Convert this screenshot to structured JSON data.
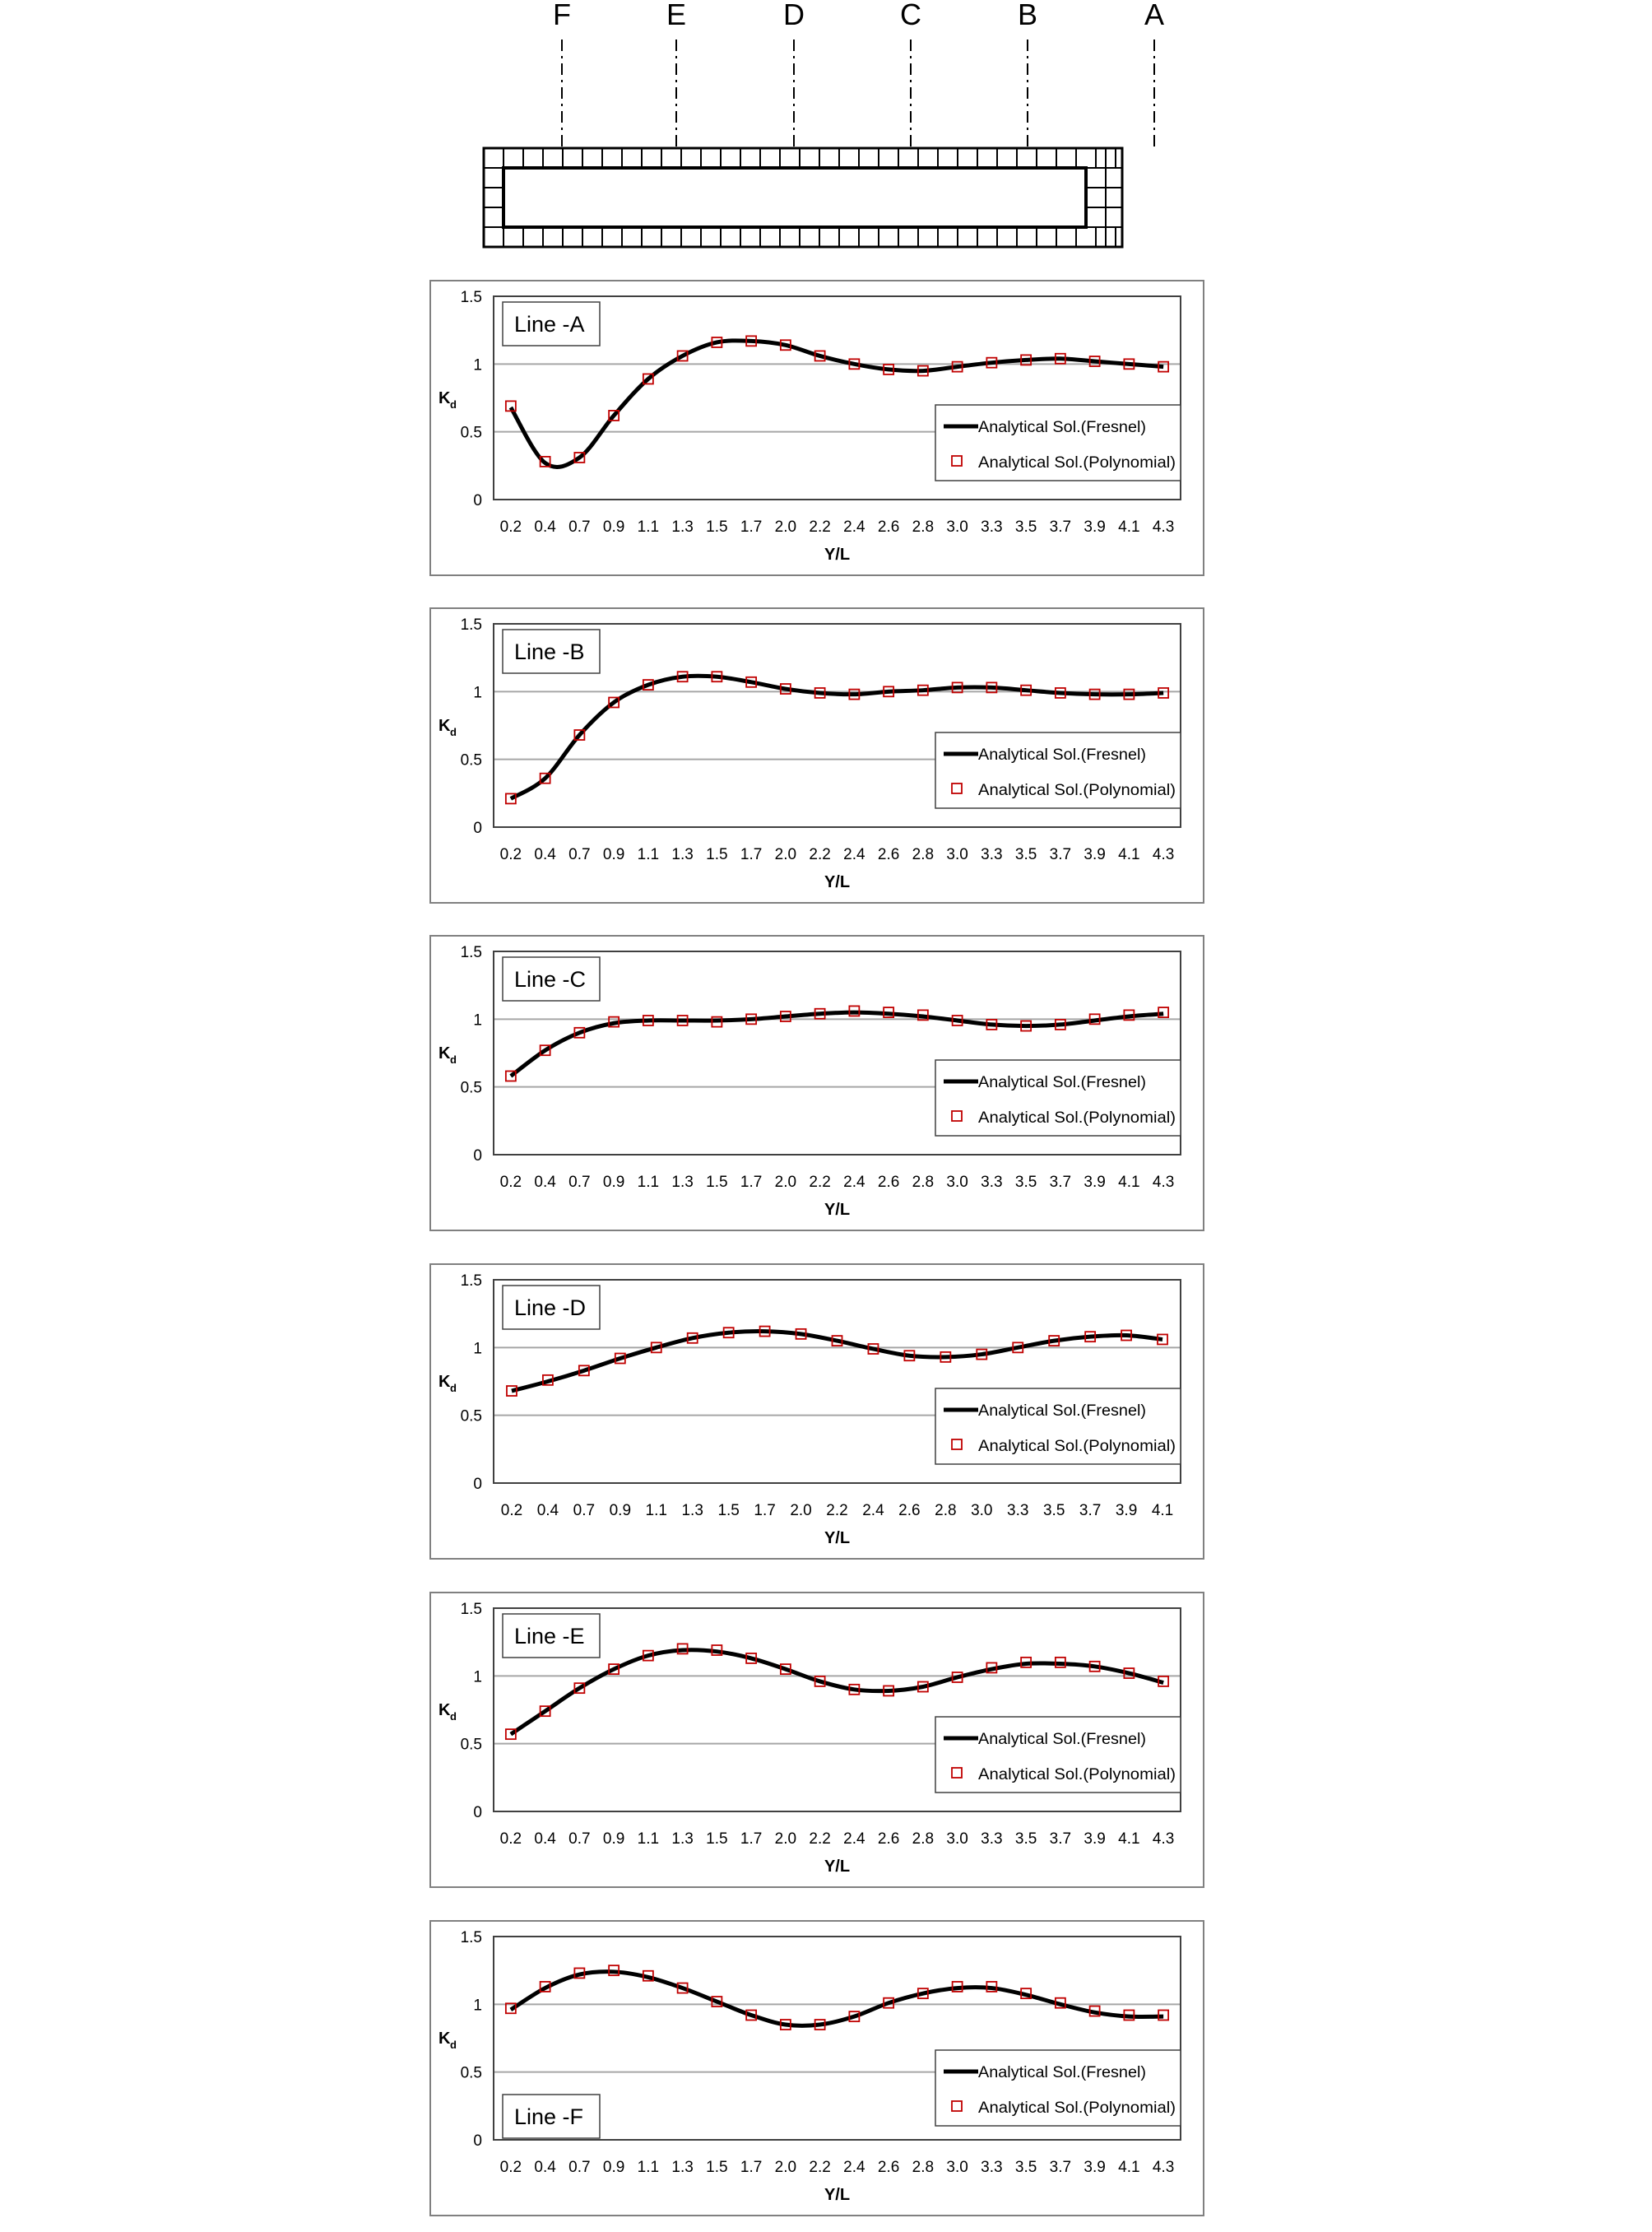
{
  "schematic": {
    "line_labels": [
      "F",
      "E",
      "D",
      "C",
      "B",
      "A"
    ]
  },
  "colors": {
    "fresnel_line": "#000000",
    "polynomial_marker": "#c00000",
    "gridline": "#a6a6a6",
    "frame": "#808080"
  },
  "chart_data": [
    {
      "type": "line",
      "title": "Line -A",
      "xlabel": "Y/L",
      "ylabel": "Kd",
      "ylim": [
        0,
        1.5
      ],
      "yticks": [
        "0",
        "0.5",
        "1",
        "1.5"
      ],
      "grid": "horizontal",
      "legend_position": "right",
      "categories": [
        "0.2",
        "0.4",
        "0.7",
        "0.9",
        "1.1",
        "1.3",
        "1.5",
        "1.7",
        "2.0",
        "2.2",
        "2.4",
        "2.6",
        "2.8",
        "3.0",
        "3.3",
        "3.5",
        "3.7",
        "3.9",
        "4.1",
        "4.3"
      ],
      "series": [
        {
          "name": "Analytical Sol.(Fresnel)",
          "style": "line",
          "values": [
            0.68,
            0.27,
            0.31,
            0.62,
            0.89,
            1.06,
            1.16,
            1.17,
            1.14,
            1.06,
            1.0,
            0.96,
            0.95,
            0.98,
            1.01,
            1.03,
            1.04,
            1.02,
            1.0,
            0.98
          ]
        },
        {
          "name": "Analytical Sol.(Polynomial)",
          "style": "marker",
          "values": [
            0.69,
            0.28,
            0.31,
            0.62,
            0.89,
            1.06,
            1.16,
            1.17,
            1.14,
            1.06,
            1.0,
            0.96,
            0.95,
            0.98,
            1.01,
            1.03,
            1.04,
            1.02,
            1.0,
            0.98
          ]
        }
      ]
    },
    {
      "type": "line",
      "title": "Line -B",
      "xlabel": "Y/L",
      "ylabel": "Kd",
      "ylim": [
        0,
        1.5
      ],
      "yticks": [
        "0",
        "0.5",
        "1",
        "1.5"
      ],
      "grid": "horizontal",
      "legend_position": "right",
      "categories": [
        "0.2",
        "0.4",
        "0.7",
        "0.9",
        "1.1",
        "1.3",
        "1.5",
        "1.7",
        "2.0",
        "2.2",
        "2.4",
        "2.6",
        "2.8",
        "3.0",
        "3.3",
        "3.5",
        "3.7",
        "3.9",
        "4.1",
        "4.3"
      ],
      "series": [
        {
          "name": "Analytical Sol.(Fresnel)",
          "style": "line",
          "values": [
            0.21,
            0.36,
            0.68,
            0.92,
            1.05,
            1.11,
            1.11,
            1.07,
            1.02,
            0.99,
            0.98,
            1.0,
            1.01,
            1.03,
            1.03,
            1.01,
            0.99,
            0.98,
            0.98,
            0.99
          ]
        },
        {
          "name": "Analytical Sol.(Polynomial)",
          "style": "marker",
          "values": [
            0.21,
            0.36,
            0.68,
            0.92,
            1.05,
            1.11,
            1.11,
            1.07,
            1.02,
            0.99,
            0.98,
            1.0,
            1.01,
            1.03,
            1.03,
            1.01,
            0.99,
            0.98,
            0.98,
            0.99
          ]
        }
      ]
    },
    {
      "type": "line",
      "title": "Line -C",
      "xlabel": "Y/L",
      "ylabel": "Kd",
      "ylim": [
        0,
        1.5
      ],
      "yticks": [
        "0",
        "0.5",
        "1",
        "1.5"
      ],
      "grid": "horizontal",
      "legend_position": "right",
      "categories": [
        "0.2",
        "0.4",
        "0.7",
        "0.9",
        "1.1",
        "1.3",
        "1.5",
        "1.7",
        "2.0",
        "2.2",
        "2.4",
        "2.6",
        "2.8",
        "3.0",
        "3.3",
        "3.5",
        "3.7",
        "3.9",
        "4.1",
        "4.3"
      ],
      "series": [
        {
          "name": "Analytical Sol.(Fresnel)",
          "style": "line",
          "values": [
            0.58,
            0.77,
            0.9,
            0.97,
            0.99,
            0.99,
            0.99,
            1.0,
            1.02,
            1.04,
            1.05,
            1.04,
            1.02,
            0.99,
            0.96,
            0.95,
            0.96,
            0.99,
            1.02,
            1.04
          ]
        },
        {
          "name": "Analytical Sol.(Polynomial)",
          "style": "marker",
          "values": [
            0.58,
            0.77,
            0.9,
            0.98,
            0.99,
            0.99,
            0.98,
            1.0,
            1.02,
            1.04,
            1.06,
            1.05,
            1.03,
            0.99,
            0.96,
            0.95,
            0.96,
            1.0,
            1.03,
            1.05
          ]
        }
      ]
    },
    {
      "type": "line",
      "title": "Line -D",
      "xlabel": "Y/L",
      "ylabel": "Kd",
      "ylim": [
        0,
        1.5
      ],
      "yticks": [
        "0",
        "0.5",
        "1",
        "1.5"
      ],
      "grid": "horizontal",
      "legend_position": "right",
      "categories": [
        "0.2",
        "0.4",
        "0.7",
        "0.9",
        "1.1",
        "1.3",
        "1.5",
        "1.7",
        "2.0",
        "2.2",
        "2.4",
        "2.6",
        "2.8",
        "3.0",
        "3.3",
        "3.5",
        "3.7",
        "3.9",
        "4.1"
      ],
      "series": [
        {
          "name": "Analytical Sol.(Fresnel)",
          "style": "line",
          "values": [
            0.68,
            0.75,
            0.83,
            0.92,
            1.0,
            1.07,
            1.11,
            1.12,
            1.1,
            1.05,
            0.99,
            0.94,
            0.93,
            0.95,
            1.0,
            1.05,
            1.08,
            1.09,
            1.06
          ]
        },
        {
          "name": "Analytical Sol.(Polynomial)",
          "style": "marker",
          "values": [
            0.68,
            0.76,
            0.83,
            0.92,
            1.0,
            1.07,
            1.11,
            1.12,
            1.1,
            1.05,
            0.99,
            0.94,
            0.93,
            0.95,
            1.0,
            1.05,
            1.08,
            1.09,
            1.06
          ]
        }
      ]
    },
    {
      "type": "line",
      "title": "Line -E",
      "xlabel": "Y/L",
      "ylabel": "Kd",
      "ylim": [
        0,
        1.5
      ],
      "yticks": [
        "0",
        "0.5",
        "1",
        "1.5"
      ],
      "grid": "horizontal",
      "legend_position": "right",
      "categories": [
        "0.2",
        "0.4",
        "0.7",
        "0.9",
        "1.1",
        "1.3",
        "1.5",
        "1.7",
        "2.0",
        "2.2",
        "2.4",
        "2.6",
        "2.8",
        "3.0",
        "3.3",
        "3.5",
        "3.7",
        "3.9",
        "4.1",
        "4.3"
      ],
      "series": [
        {
          "name": "Analytical Sol.(Fresnel)",
          "style": "line",
          "values": [
            0.57,
            0.74,
            0.91,
            1.05,
            1.15,
            1.19,
            1.18,
            1.13,
            1.05,
            0.96,
            0.9,
            0.89,
            0.92,
            0.99,
            1.05,
            1.09,
            1.09,
            1.07,
            1.02,
            0.95
          ]
        },
        {
          "name": "Analytical Sol.(Polynomial)",
          "style": "marker",
          "values": [
            0.57,
            0.74,
            0.91,
            1.05,
            1.15,
            1.2,
            1.19,
            1.13,
            1.05,
            0.96,
            0.9,
            0.89,
            0.92,
            0.99,
            1.06,
            1.1,
            1.1,
            1.07,
            1.02,
            0.96
          ]
        }
      ]
    },
    {
      "type": "line",
      "title": "Line -F",
      "xlabel": "Y/L",
      "ylabel": "Kd",
      "ylim": [
        0,
        1.5
      ],
      "yticks": [
        "0",
        "0.5",
        "1",
        "1.5"
      ],
      "grid": "horizontal",
      "legend_position": "bottom-right",
      "categories": [
        "0.2",
        "0.4",
        "0.7",
        "0.9",
        "1.1",
        "1.3",
        "1.5",
        "1.7",
        "2.0",
        "2.2",
        "2.4",
        "2.6",
        "2.8",
        "3.0",
        "3.3",
        "3.5",
        "3.7",
        "3.9",
        "4.1",
        "4.3"
      ],
      "series": [
        {
          "name": "Analytical Sol.(Fresnel)",
          "style": "line",
          "values": [
            0.96,
            1.12,
            1.22,
            1.24,
            1.2,
            1.12,
            1.02,
            0.92,
            0.85,
            0.85,
            0.91,
            1.01,
            1.08,
            1.12,
            1.12,
            1.07,
            1.0,
            0.94,
            0.91,
            0.91
          ]
        },
        {
          "name": "Analytical Sol.(Polynomial)",
          "style": "marker",
          "values": [
            0.97,
            1.13,
            1.23,
            1.25,
            1.21,
            1.12,
            1.02,
            0.92,
            0.85,
            0.85,
            0.91,
            1.01,
            1.08,
            1.13,
            1.13,
            1.08,
            1.01,
            0.95,
            0.92,
            0.92
          ]
        }
      ]
    }
  ]
}
